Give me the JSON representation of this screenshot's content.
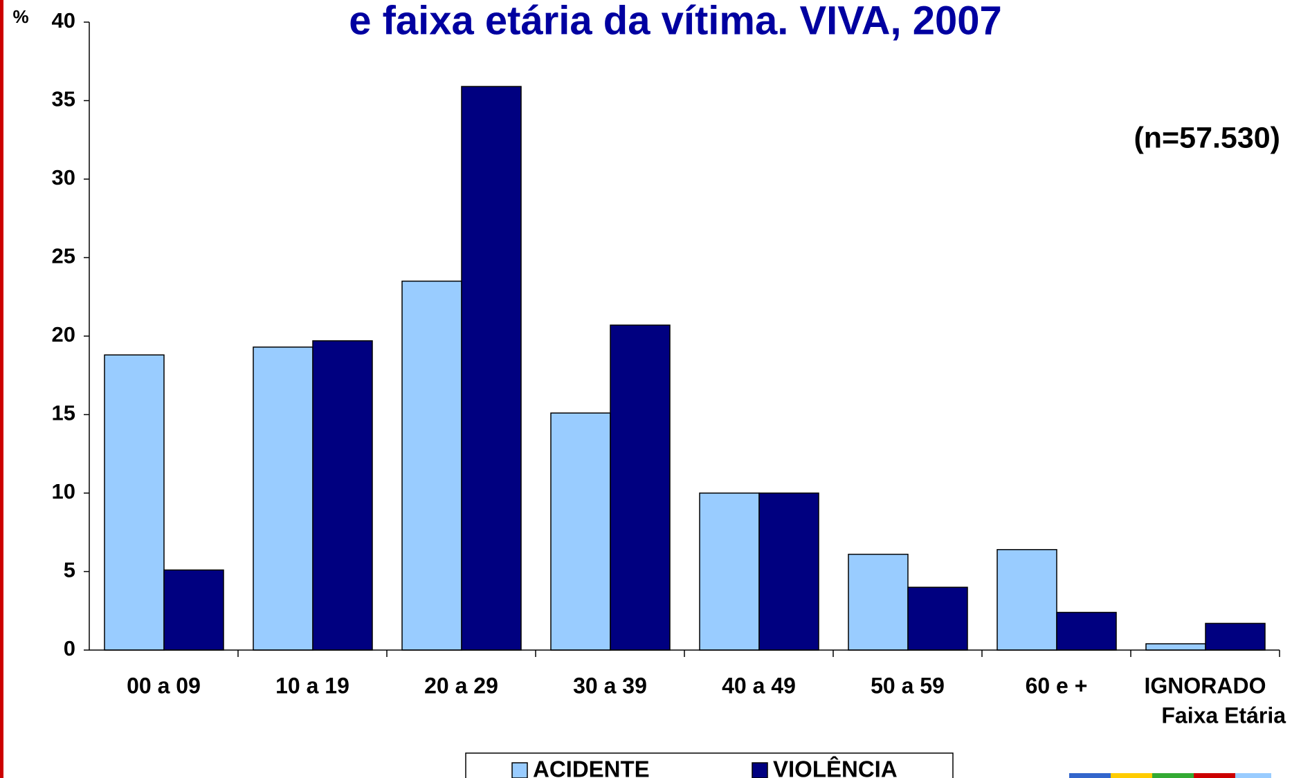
{
  "chart_data": {
    "type": "bar",
    "title": "e faixa etária da vítima. VIVA, 2007",
    "y_label": "%",
    "x_label": "Faixa Etária",
    "annotation": "(n=57.530)",
    "categories": [
      "00 a 09",
      "10 a 19",
      "20 a 29",
      "30 a 39",
      "40 a 49",
      "50 a 59",
      "60 e +",
      "IGNORADO"
    ],
    "series": [
      {
        "name": "ACIDENTE",
        "color": "#99ccff",
        "values": [
          18.8,
          19.3,
          23.5,
          15.1,
          10.0,
          6.1,
          6.4,
          0.4
        ]
      },
      {
        "name": "VIOLÊNCIA",
        "color": "#000080",
        "values": [
          5.1,
          19.7,
          35.9,
          20.7,
          10.0,
          4.0,
          2.4,
          1.7
        ]
      }
    ],
    "ylim": [
      0,
      40
    ],
    "yticks": [
      0,
      5,
      10,
      15,
      20,
      25,
      30,
      35,
      40
    ],
    "legend": "bottom"
  }
}
